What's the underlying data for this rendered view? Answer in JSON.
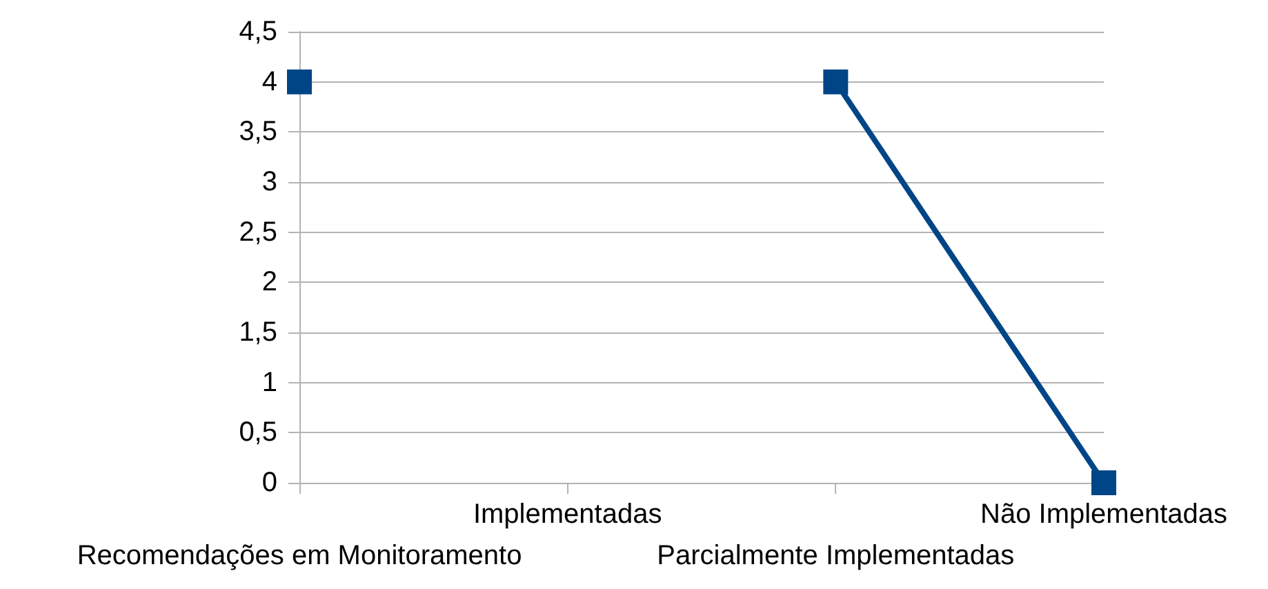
{
  "chart_data": {
    "type": "line",
    "categories": [
      "Recomendações em Monitoramento",
      "Implementadas",
      "Parcialmente Implementadas",
      "Não Implementadas"
    ],
    "series": [
      {
        "color": "#004586",
        "values": [
          4,
          null,
          4,
          0
        ]
      }
    ],
    "ylim": [
      0,
      4.5
    ],
    "yticks": [
      0,
      {
        "value": 0.5,
        "label": "0,5"
      },
      1,
      {
        "value": 1.5,
        "label": "1,5"
      },
      2,
      {
        "value": 2.5,
        "label": "2,5"
      },
      3,
      {
        "value": 3.5,
        "label": "3,5"
      },
      4,
      {
        "value": 4.5,
        "label": "4,5"
      }
    ],
    "grid": "y",
    "marker": "square",
    "line_style": "solid"
  }
}
